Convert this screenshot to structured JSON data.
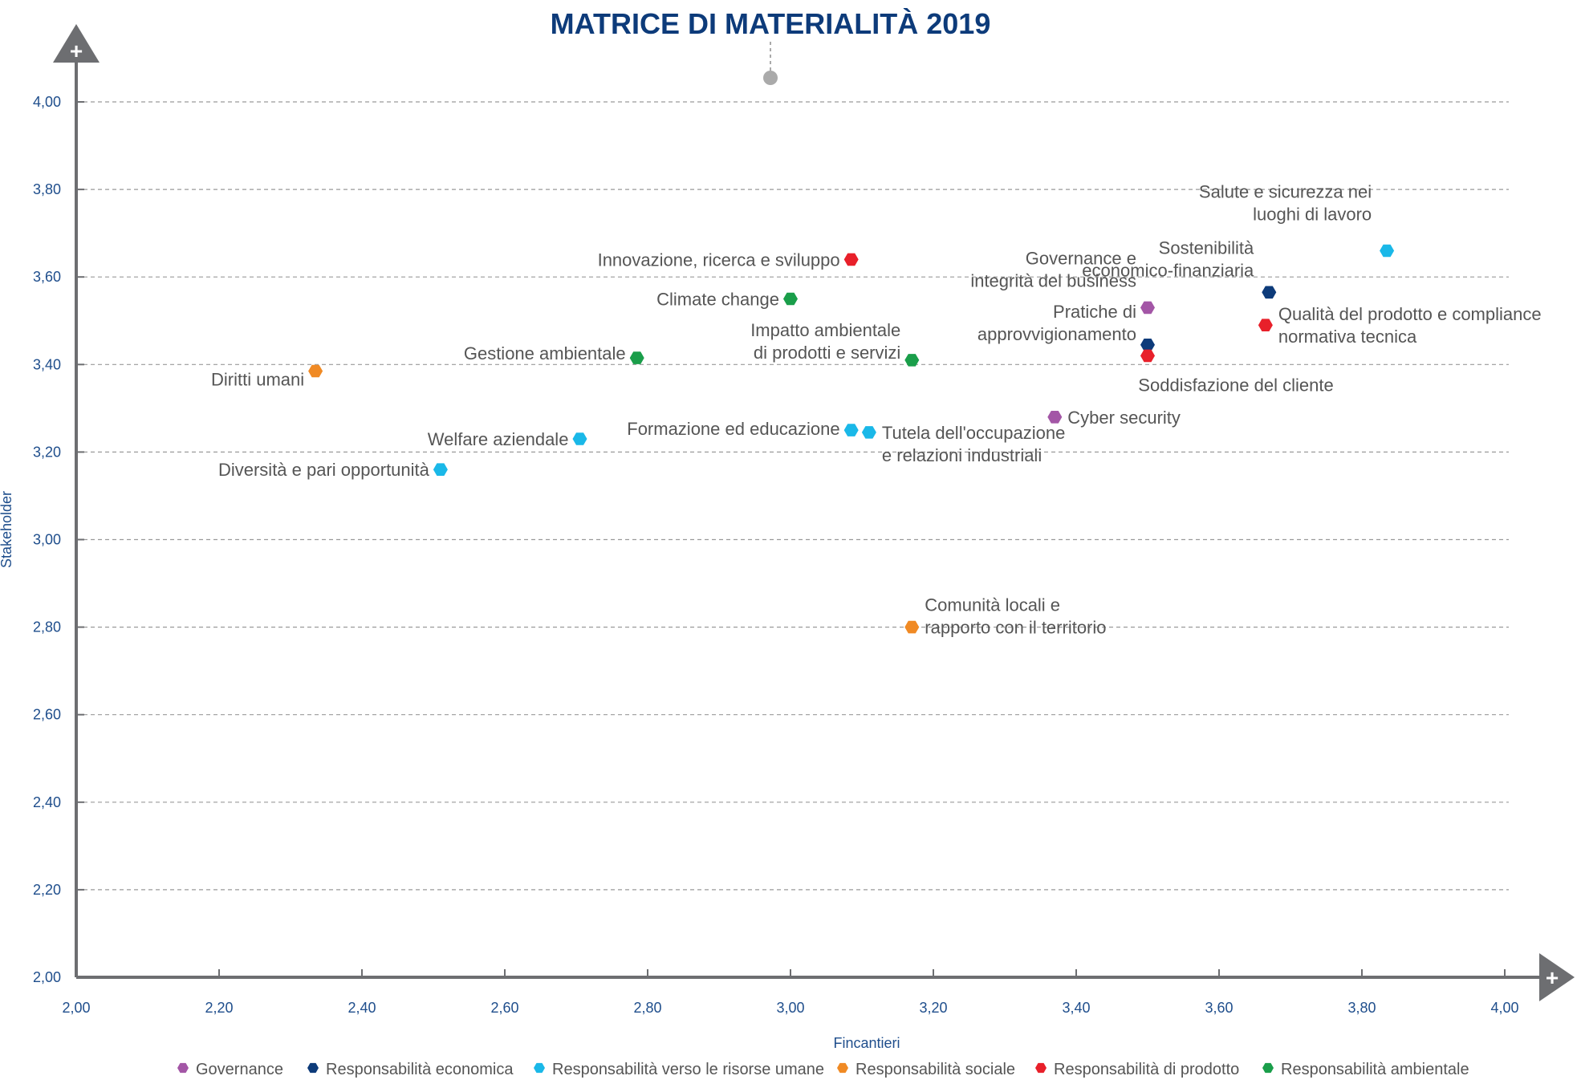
{
  "chart_data": {
    "type": "scatter",
    "title": "MATRICE DI MATERIALITÀ 2019",
    "xlabel": "Fincantieri",
    "ylabel": "Stakeholder",
    "xlim": [
      2.0,
      4.0
    ],
    "ylim": [
      2.0,
      4.0
    ],
    "x_ticks": [
      "2,00",
      "2,20",
      "2,40",
      "2,60",
      "2,80",
      "3,00",
      "3,20",
      "3,40",
      "3,60",
      "3,80",
      "4,00"
    ],
    "y_ticks": [
      "2,00",
      "2,20",
      "2,40",
      "2,60",
      "2,80",
      "3,00",
      "3,20",
      "3,40",
      "3,60",
      "3,80",
      "4,00"
    ],
    "grid": "horizontal dashed",
    "legend_position": "bottom",
    "axis_end_symbol": "+",
    "series": [
      {
        "name": "Governance",
        "color": "#a356a6",
        "points": [
          {
            "x": 3.5,
            "y": 3.53,
            "lines": [
              "Governance e",
              "integrità del business"
            ]
          },
          {
            "x": 3.37,
            "y": 3.28,
            "lines": [
              "Cyber security"
            ]
          }
        ]
      },
      {
        "name": "Responsabilità economica",
        "color": "#0d3b7a",
        "points": [
          {
            "x": 3.67,
            "y": 3.565,
            "lines": [
              "Sostenibilità",
              "economico-finanziaria"
            ]
          },
          {
            "x": 3.5,
            "y": 3.445,
            "lines": [
              "Pratiche di",
              "approvvigionamento"
            ]
          }
        ]
      },
      {
        "name": "Responsabilità verso le risorse umane",
        "color": "#1ab8e8",
        "points": [
          {
            "x": 3.835,
            "y": 3.66,
            "lines": [
              "Salute e sicurezza nei",
              "luoghi di lavoro"
            ]
          },
          {
            "x": 2.705,
            "y": 3.23,
            "lines": [
              "Welfare aziendale"
            ]
          },
          {
            "x": 2.51,
            "y": 3.16,
            "lines": [
              "Diversità e pari opportunità"
            ]
          },
          {
            "x": 3.085,
            "y": 3.25,
            "lines": [
              "Formazione ed educazione"
            ]
          },
          {
            "x": 3.11,
            "y": 3.245,
            "lines": [
              "Tutela dell'occupazione",
              "e relazioni industriali"
            ]
          }
        ]
      },
      {
        "name": "Responsabilità sociale",
        "color": "#f08a24",
        "points": [
          {
            "x": 2.335,
            "y": 3.385,
            "lines": [
              "Diritti umani"
            ]
          },
          {
            "x": 3.17,
            "y": 2.8,
            "lines": [
              "Comunità locali e",
              "rapporto con il territorio"
            ]
          }
        ]
      },
      {
        "name": "Responsabilità di prodotto",
        "color": "#e8202a",
        "points": [
          {
            "x": 3.085,
            "y": 3.64,
            "lines": [
              "Innovazione, ricerca e sviluppo"
            ]
          },
          {
            "x": 3.665,
            "y": 3.49,
            "lines": [
              "Qualità del prodotto e compliance",
              "normativa tecnica"
            ]
          },
          {
            "x": 3.5,
            "y": 3.42,
            "lines": [
              "Soddisfazione del cliente"
            ]
          }
        ]
      },
      {
        "name": "Responsabilità ambientale",
        "color": "#1a9e4a",
        "points": [
          {
            "x": 3.0,
            "y": 3.55,
            "lines": [
              "Climate change"
            ]
          },
          {
            "x": 2.785,
            "y": 3.415,
            "lines": [
              "Gestione ambientale"
            ]
          },
          {
            "x": 3.17,
            "y": 3.41,
            "lines": [
              "Impatto ambientale",
              "di prodotti e servizi"
            ]
          }
        ]
      }
    ]
  }
}
